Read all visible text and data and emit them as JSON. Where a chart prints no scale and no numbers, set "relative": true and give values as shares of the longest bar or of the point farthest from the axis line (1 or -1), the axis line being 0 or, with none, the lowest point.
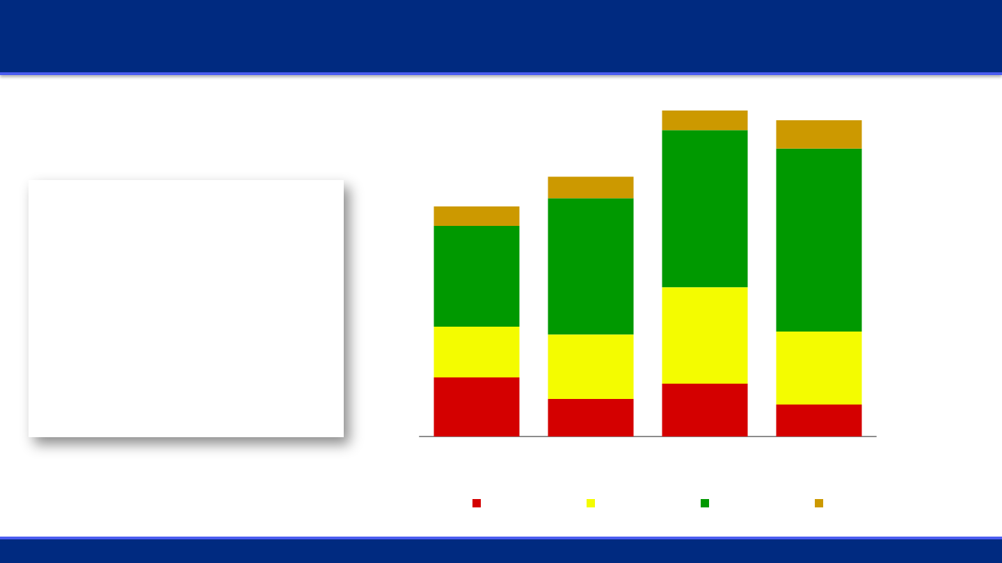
{
  "chart_data": {
    "type": "bar",
    "relative": true,
    "stacked": true,
    "categories": [
      null,
      null,
      null,
      null
    ],
    "series": [
      {
        "color": "#d40000",
        "values": [
          0.181,
          0.115,
          0.162,
          0.098
        ]
      },
      {
        "color": "#f4fc00",
        "values": [
          0.156,
          0.198,
          0.296,
          0.224
        ]
      },
      {
        "color": "#009900",
        "values": [
          0.309,
          0.418,
          0.482,
          0.561
        ]
      },
      {
        "color": "#cc9900",
        "values": [
          0.06,
          0.066,
          0.06,
          0.087
        ]
      }
    ],
    "data_labels": false
  }
}
